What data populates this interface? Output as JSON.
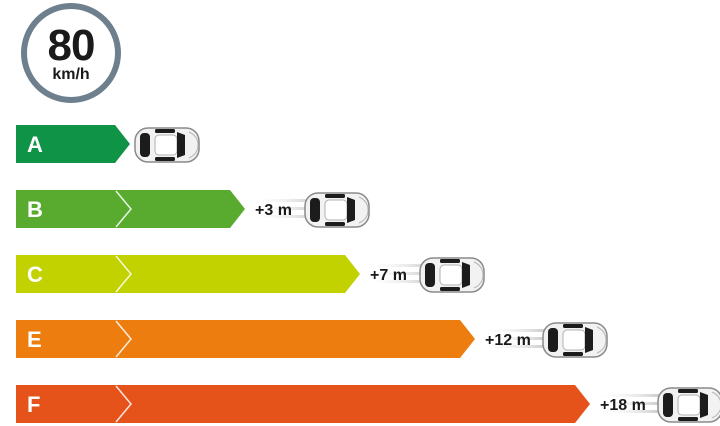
{
  "speed_sign": {
    "value": "80",
    "unit": "km/h"
  },
  "colors": {
    "sign_border": "#6e7f8d",
    "A": "#0f9447",
    "B": "#59ab2f",
    "C": "#c2d100",
    "E": "#ee7d10",
    "F": "#e5531a"
  },
  "rows": [
    {
      "grade": "A",
      "distance": "",
      "color": "#0f9447"
    },
    {
      "grade": "B",
      "distance": "+3 m",
      "color": "#59ab2f"
    },
    {
      "grade": "C",
      "distance": "+7 m",
      "color": "#c2d100"
    },
    {
      "grade": "E",
      "distance": "+12 m",
      "color": "#ee7d10"
    },
    {
      "grade": "F",
      "distance": "+18 m",
      "color": "#e5531a"
    }
  ],
  "car_icon": "car-top-view-icon"
}
